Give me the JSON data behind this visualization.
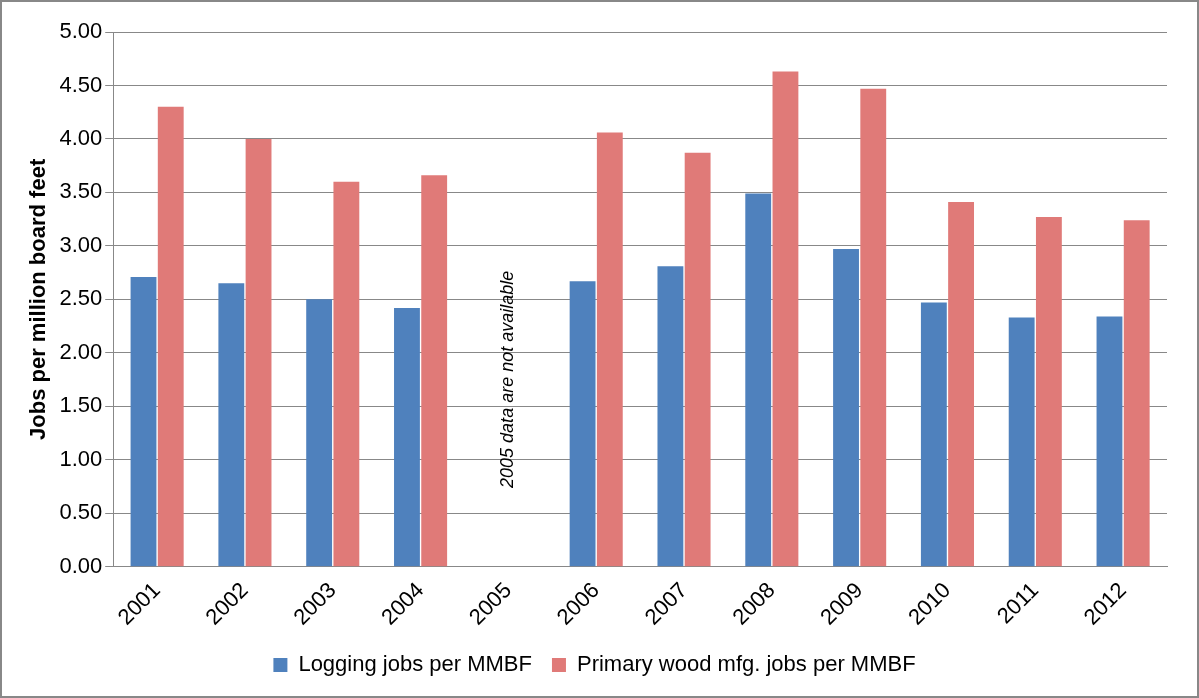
{
  "chart_data": {
    "type": "bar",
    "ylabel": "Jobs per million board feet",
    "categories": [
      "2001",
      "2002",
      "2003",
      "2004",
      "2005",
      "2006",
      "2007",
      "2008",
      "2009",
      "2010",
      "2011",
      "2012"
    ],
    "series": [
      {
        "name": "Logging jobs per MMBF",
        "color": "#4f81bd",
        "values": [
          2.71,
          2.65,
          2.5,
          2.42,
          null,
          2.67,
          2.81,
          3.49,
          2.97,
          2.47,
          2.33,
          2.34
        ]
      },
      {
        "name": "Primary wood mfg. jobs per MMBF",
        "color": "#e07a78",
        "values": [
          4.3,
          4.0,
          3.6,
          3.66,
          null,
          4.06,
          3.87,
          4.63,
          4.47,
          3.41,
          3.27,
          3.24
        ]
      }
    ],
    "ylim": [
      0,
      5
    ],
    "yticks": [
      {
        "value": 0,
        "label": "0.00"
      },
      {
        "value": 0.5,
        "label": "0.50"
      },
      {
        "value": 1,
        "label": "1.00"
      },
      {
        "value": 1.5,
        "label": "1.50"
      },
      {
        "value": 2,
        "label": "2.00"
      },
      {
        "value": 2.5,
        "label": "2.50"
      },
      {
        "value": 3,
        "label": "3.00"
      },
      {
        "value": 3.5,
        "label": "3.50"
      },
      {
        "value": 4,
        "label": "4.00"
      },
      {
        "value": 4.5,
        "label": "4.50"
      },
      {
        "value": 5,
        "label": "5.00"
      }
    ],
    "grid": "y",
    "legend": "bottom",
    "annotations": [
      "2005 data are not available"
    ]
  }
}
